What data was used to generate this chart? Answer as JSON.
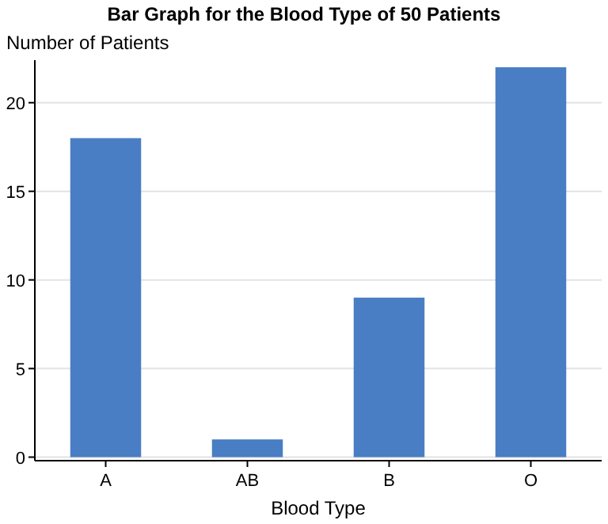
{
  "chart_data": {
    "type": "bar",
    "title": "Bar Graph for the Blood Type of 50 Patients",
    "xlabel": "Blood Type",
    "ylabel": "Number of Patients",
    "categories": [
      "A",
      "AB",
      "B",
      "O"
    ],
    "values": [
      18,
      1,
      9,
      22
    ],
    "color": "#4a7ec4",
    "ylim": [
      -0.2,
      22.4
    ],
    "yticks": [
      0,
      5,
      10,
      15,
      20
    ],
    "grid": "y"
  }
}
